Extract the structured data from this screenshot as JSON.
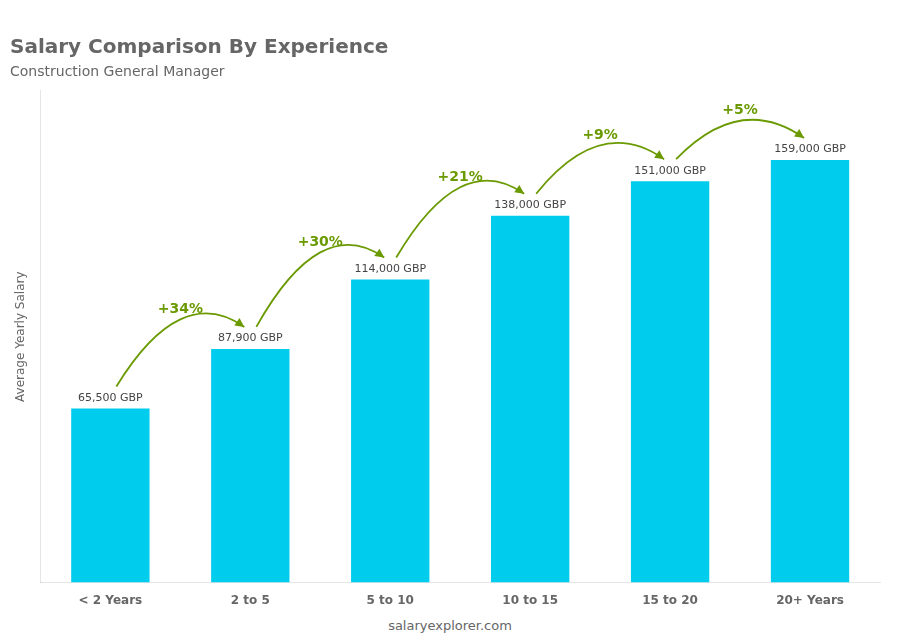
{
  "chart_data": {
    "type": "bar",
    "title": "Salary Comparison By Experience",
    "subtitle": "Construction General Manager",
    "ylabel": "Average Yearly Salary",
    "footer": "salaryexplorer.com",
    "categories": [
      "< 2 Years",
      "2 to 5",
      "5 to 10",
      "10 to 15",
      "15 to 20",
      "20+ Years"
    ],
    "values": [
      65500,
      87900,
      114000,
      138000,
      151000,
      159000
    ],
    "value_labels": [
      "65,500 GBP",
      "87,900 GBP",
      "114,000 GBP",
      "138,000 GBP",
      "151,000 GBP",
      "159,000 GBP"
    ],
    "data_labels": true,
    "annotations": [
      "+34%",
      "+30%",
      "+21%",
      "+9%",
      "+5%"
    ],
    "color": "#00ccee",
    "ylim": [
      0,
      185000
    ],
    "tick_labels": "x",
    "grid": false
  }
}
